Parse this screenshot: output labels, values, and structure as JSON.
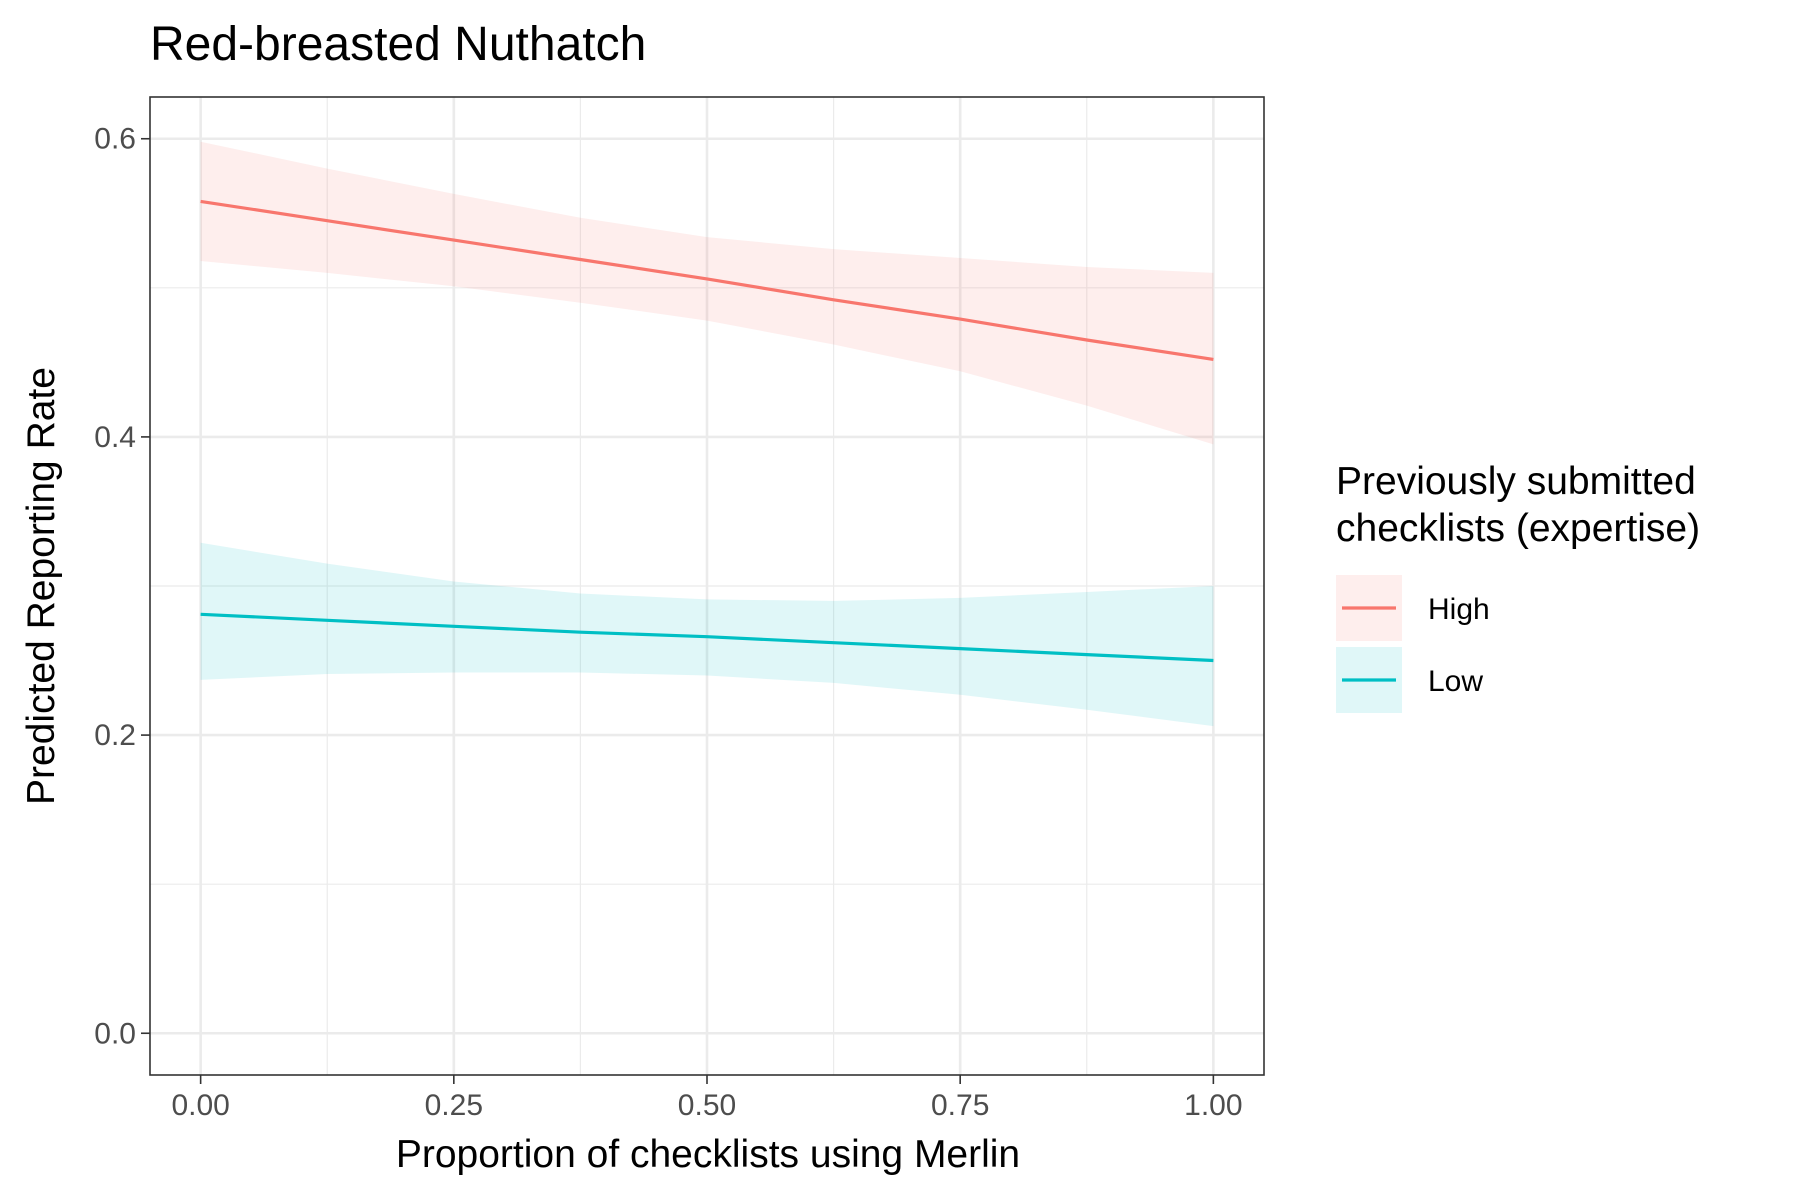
{
  "chart_data": {
    "type": "line",
    "title": "Red-breasted Nuthatch",
    "xlabel": "Proportion of checklists using Merlin",
    "ylabel": "Predicted Reporting Rate",
    "xlim": [
      -0.05,
      1.05
    ],
    "ylim": [
      -0.028,
      0.628
    ],
    "x_ticks": [
      0.0,
      0.25,
      0.5,
      0.75,
      1.0
    ],
    "x_tick_labels": [
      "0.00",
      "0.25",
      "0.50",
      "0.75",
      "1.00"
    ],
    "y_ticks": [
      0.0,
      0.2,
      0.4,
      0.6
    ],
    "y_tick_labels": [
      "0.0",
      "0.2",
      "0.4",
      "0.6"
    ],
    "grid": true,
    "legend": {
      "title_lines": [
        "Previously submitted",
        "checklists (expertise)"
      ],
      "position": "right"
    },
    "series": [
      {
        "name": "High",
        "color": "#F8766D",
        "fill": "#F8766D",
        "x": [
          0.0,
          0.125,
          0.25,
          0.375,
          0.5,
          0.625,
          0.75,
          0.875,
          1.0
        ],
        "y": [
          0.558,
          0.545,
          0.532,
          0.519,
          0.506,
          0.492,
          0.479,
          0.465,
          0.452
        ],
        "lower": [
          0.518,
          0.51,
          0.501,
          0.49,
          0.478,
          0.462,
          0.444,
          0.421,
          0.395
        ],
        "upper": [
          0.598,
          0.58,
          0.563,
          0.547,
          0.534,
          0.526,
          0.52,
          0.514,
          0.51
        ]
      },
      {
        "name": "Low",
        "color": "#00BFC4",
        "fill": "#00BFC4",
        "x": [
          0.0,
          0.125,
          0.25,
          0.375,
          0.5,
          0.625,
          0.75,
          0.875,
          1.0
        ],
        "y": [
          0.281,
          0.277,
          0.273,
          0.269,
          0.266,
          0.262,
          0.258,
          0.254,
          0.25
        ],
        "lower": [
          0.237,
          0.241,
          0.242,
          0.242,
          0.24,
          0.235,
          0.227,
          0.217,
          0.206
        ],
        "upper": [
          0.329,
          0.315,
          0.303,
          0.295,
          0.291,
          0.29,
          0.292,
          0.296,
          0.3
        ]
      }
    ]
  }
}
